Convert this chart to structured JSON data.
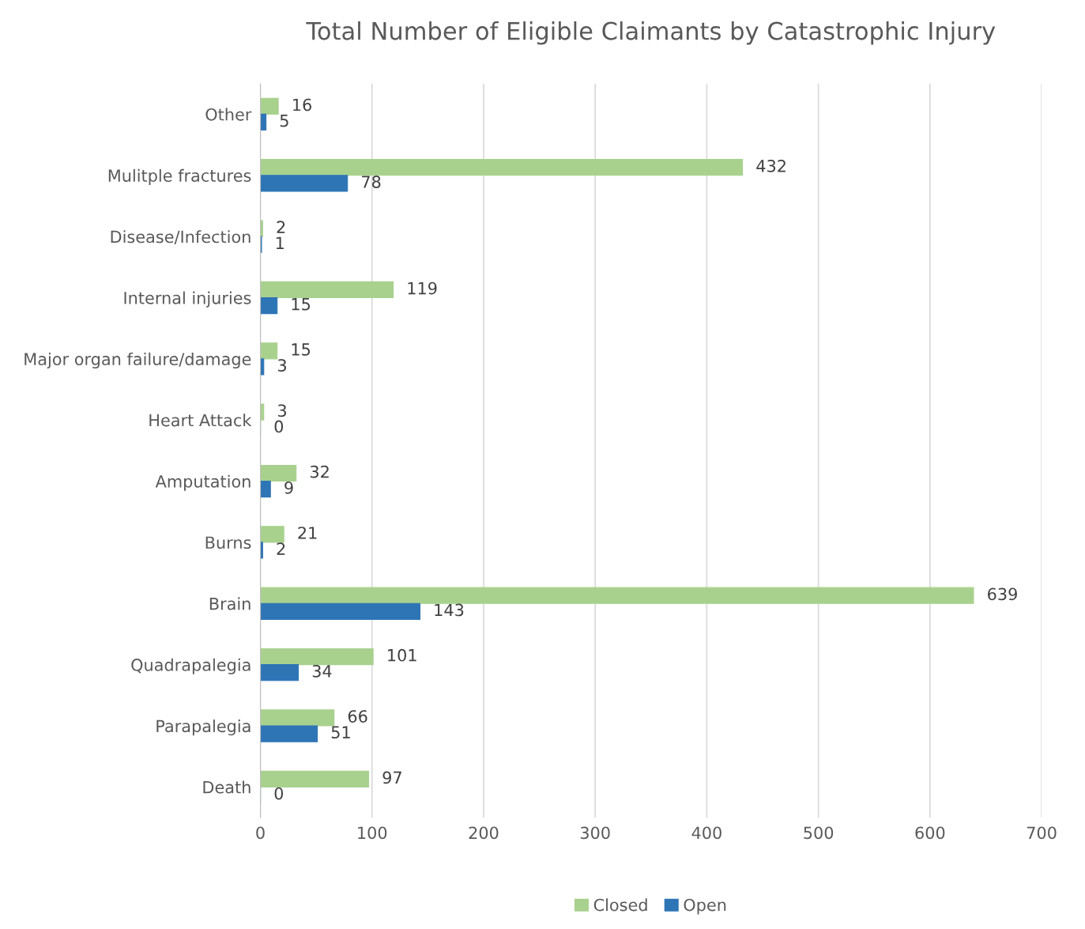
{
  "chart_data": {
    "type": "bar",
    "orientation": "horizontal",
    "title": "Total Number of Eligible Claimants by Catastrophic Injury",
    "categories": [
      "Other",
      "Mulitple fractures",
      "Disease/Infection",
      "Internal injuries",
      "Major organ failure/damage",
      "Heart Attack",
      "Amputation",
      "Burns",
      "Brain",
      "Quadrapalegia",
      "Parapalegia",
      "Death"
    ],
    "series": [
      {
        "name": "Closed",
        "color": "#a9d18e",
        "values": [
          16,
          432,
          2,
          119,
          15,
          3,
          32,
          21,
          639,
          101,
          66,
          97
        ]
      },
      {
        "name": "Open",
        "color": "#2e75b6",
        "values": [
          5,
          78,
          1,
          15,
          3,
          0,
          9,
          2,
          143,
          34,
          51,
          0
        ]
      }
    ],
    "xlim": [
      0,
      700
    ],
    "xticks": [
      0,
      100,
      200,
      300,
      400,
      500,
      600,
      700
    ],
    "grid": "x",
    "legend": "bottom",
    "data_labels": true
  }
}
